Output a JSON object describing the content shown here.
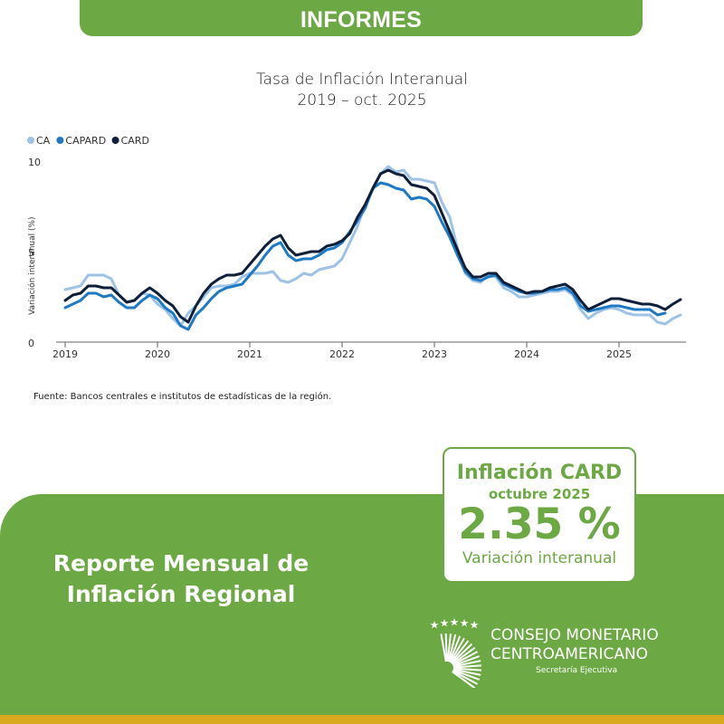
{
  "header": {
    "banner": "INFORMES"
  },
  "chart_data": {
    "type": "line",
    "title": "Tasa de Inflación Interanual",
    "subtitle": "2019 –  oct. 2025",
    "ylabel": "Variación interanual (%)",
    "xlabel": "",
    "ylim": [
      0,
      10
    ],
    "yticks": [
      0,
      5,
      10
    ],
    "xticks": [
      "2019",
      "2020",
      "2021",
      "2022",
      "2023",
      "2024",
      "2025"
    ],
    "legend_position": "top-left",
    "grid": false,
    "x_start": "2019-01",
    "x_step": "month",
    "series": [
      {
        "name": "CA",
        "color": "#9ec3e6",
        "values": [
          2.9,
          3.0,
          3.1,
          3.7,
          3.7,
          3.7,
          3.5,
          2.6,
          2.2,
          2.3,
          2.7,
          2.6,
          2.1,
          1.8,
          1.3,
          0.9,
          1.6,
          2.0,
          2.5,
          3.0,
          3.1,
          3.1,
          3.2,
          3.6,
          3.8,
          3.8,
          3.8,
          3.9,
          3.4,
          3.3,
          3.5,
          3.8,
          3.7,
          4.0,
          4.1,
          4.2,
          4.6,
          5.5,
          6.4,
          7.6,
          8.4,
          9.3,
          9.7,
          9.4,
          9.5,
          9.0,
          9.0,
          8.9,
          8.8,
          7.7,
          6.9,
          5.2,
          3.8,
          3.4,
          3.3,
          3.7,
          3.6,
          3.0,
          2.8,
          2.5,
          2.5,
          2.6,
          2.7,
          2.8,
          2.8,
          2.9,
          2.6,
          1.8,
          1.3,
          1.6,
          1.8,
          1.9,
          1.8,
          1.6,
          1.5,
          1.5,
          1.5,
          1.1,
          1.0,
          1.3,
          1.5
        ]
      },
      {
        "name": "CAPARD",
        "color": "#1f7ac3",
        "values": [
          1.9,
          2.1,
          2.3,
          2.7,
          2.7,
          2.5,
          2.6,
          2.2,
          1.9,
          1.9,
          2.3,
          2.6,
          2.4,
          1.9,
          1.6,
          0.9,
          0.7,
          1.5,
          1.9,
          2.4,
          2.8,
          3.0,
          3.1,
          3.2,
          3.7,
          4.2,
          4.8,
          5.3,
          5.5,
          4.8,
          4.5,
          4.6,
          4.6,
          4.8,
          5.1,
          5.2,
          5.5,
          6.1,
          6.7,
          7.4,
          8.5,
          8.8,
          8.7,
          8.5,
          8.4,
          7.9,
          8.0,
          7.9,
          7.5,
          6.6,
          5.8,
          4.8,
          3.9,
          3.5,
          3.4,
          3.6,
          3.7,
          3.2,
          3.0,
          2.8,
          2.7,
          2.7,
          2.8,
          2.9,
          2.9,
          3.0,
          2.7,
          2.0,
          1.7,
          1.8,
          1.9,
          2.0,
          2.0,
          1.9,
          1.8,
          1.8,
          1.8,
          1.5,
          1.6,
          null,
          null
        ]
      },
      {
        "name": "CARD",
        "color": "#0f1f3a",
        "values": [
          2.3,
          2.6,
          2.7,
          3.1,
          3.1,
          3.0,
          3.0,
          2.6,
          2.2,
          2.3,
          2.7,
          3.0,
          2.7,
          2.3,
          2.0,
          1.4,
          1.1,
          2.0,
          2.7,
          3.2,
          3.5,
          3.7,
          3.7,
          3.8,
          4.3,
          4.8,
          5.3,
          5.7,
          5.9,
          5.2,
          4.8,
          4.9,
          5.0,
          5.0,
          5.3,
          5.4,
          5.6,
          6.0,
          6.9,
          7.6,
          8.5,
          9.3,
          9.5,
          9.3,
          9.2,
          8.7,
          8.6,
          8.5,
          8.1,
          7.1,
          6.1,
          5.1,
          4.1,
          3.6,
          3.6,
          3.8,
          3.8,
          3.3,
          3.1,
          2.9,
          2.7,
          2.8,
          2.8,
          3.0,
          3.1,
          3.2,
          2.9,
          2.3,
          1.8,
          2.0,
          2.2,
          2.4,
          2.4,
          2.3,
          2.2,
          2.1,
          2.1,
          2.0,
          1.8,
          2.1,
          2.35
        ]
      }
    ],
    "source": "Fuente: Bancos centrales e institutos de estadísticas de la región."
  },
  "card": {
    "title": "Inflación CARD",
    "month": "octubre 2025",
    "value": "2.35 %",
    "subtitle": "Variación interanual"
  },
  "report": {
    "line1": "Reporte Mensual de",
    "line2": "Inflación Regional"
  },
  "logo": {
    "line1": "CONSEJO MONETARIO",
    "line2": "CENTROAMERICANO",
    "line3": "Secretaría Ejecutiva",
    "icon": "fan-with-stars-icon"
  },
  "colors": {
    "green": "#6ca844",
    "gold": "#d9a91f"
  }
}
